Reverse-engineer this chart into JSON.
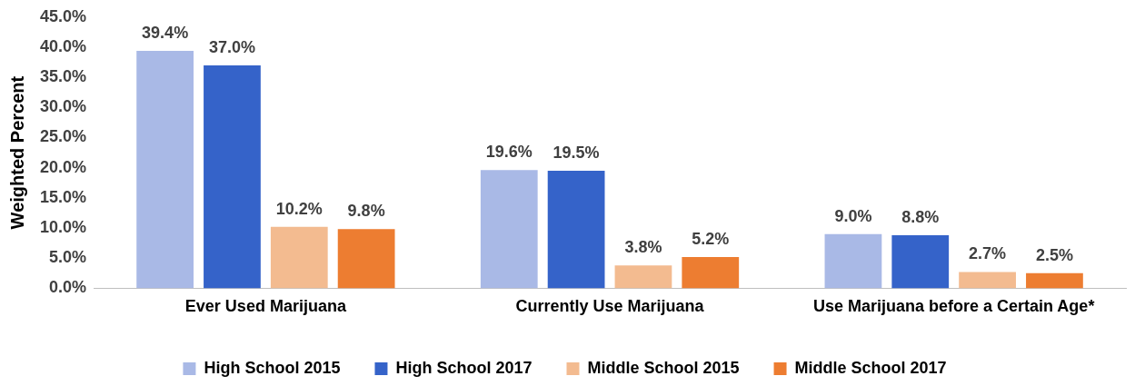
{
  "chart_data": {
    "type": "bar",
    "ylabel": "Weighted Percent",
    "categories": [
      "Ever Used Marijuana",
      "Currently Use Marijuana",
      "Use Marijuana before a Certain Age*"
    ],
    "series": [
      {
        "name": "High School 2015",
        "color": "#a9b9e6",
        "values": [
          39.4,
          19.6,
          9.0
        ],
        "value_labels": [
          "39.4%",
          "19.6%",
          "9.0%"
        ]
      },
      {
        "name": "High School 2017",
        "color": "#3563c9",
        "values": [
          37.0,
          19.5,
          8.8
        ],
        "value_labels": [
          "37.0%",
          "19.5%",
          "8.8%"
        ]
      },
      {
        "name": "Middle School 2015",
        "color": "#f3bb90",
        "values": [
          10.2,
          3.8,
          2.7
        ],
        "value_labels": [
          "10.2%",
          "3.8%",
          "2.7%"
        ]
      },
      {
        "name": "Middle School 2017",
        "color": "#ed7d31",
        "values": [
          9.8,
          5.2,
          2.5
        ],
        "value_labels": [
          "9.8%",
          "5.2%",
          "2.5%"
        ]
      }
    ],
    "ylim": [
      0,
      45
    ],
    "yticks": [
      {
        "value": 0,
        "label": "0.0%"
      },
      {
        "value": 5,
        "label": "5.0%"
      },
      {
        "value": 10,
        "label": "10.0%"
      },
      {
        "value": 15,
        "label": "15.0%"
      },
      {
        "value": 20,
        "label": "20.0%"
      },
      {
        "value": 25,
        "label": "25.0%"
      },
      {
        "value": 30,
        "label": "30.0%"
      },
      {
        "value": 35,
        "label": "35.0%"
      },
      {
        "value": 40,
        "label": "40.0%"
      },
      {
        "value": 45,
        "label": "45.0%"
      }
    ],
    "grid": false,
    "legend": "bottom"
  }
}
